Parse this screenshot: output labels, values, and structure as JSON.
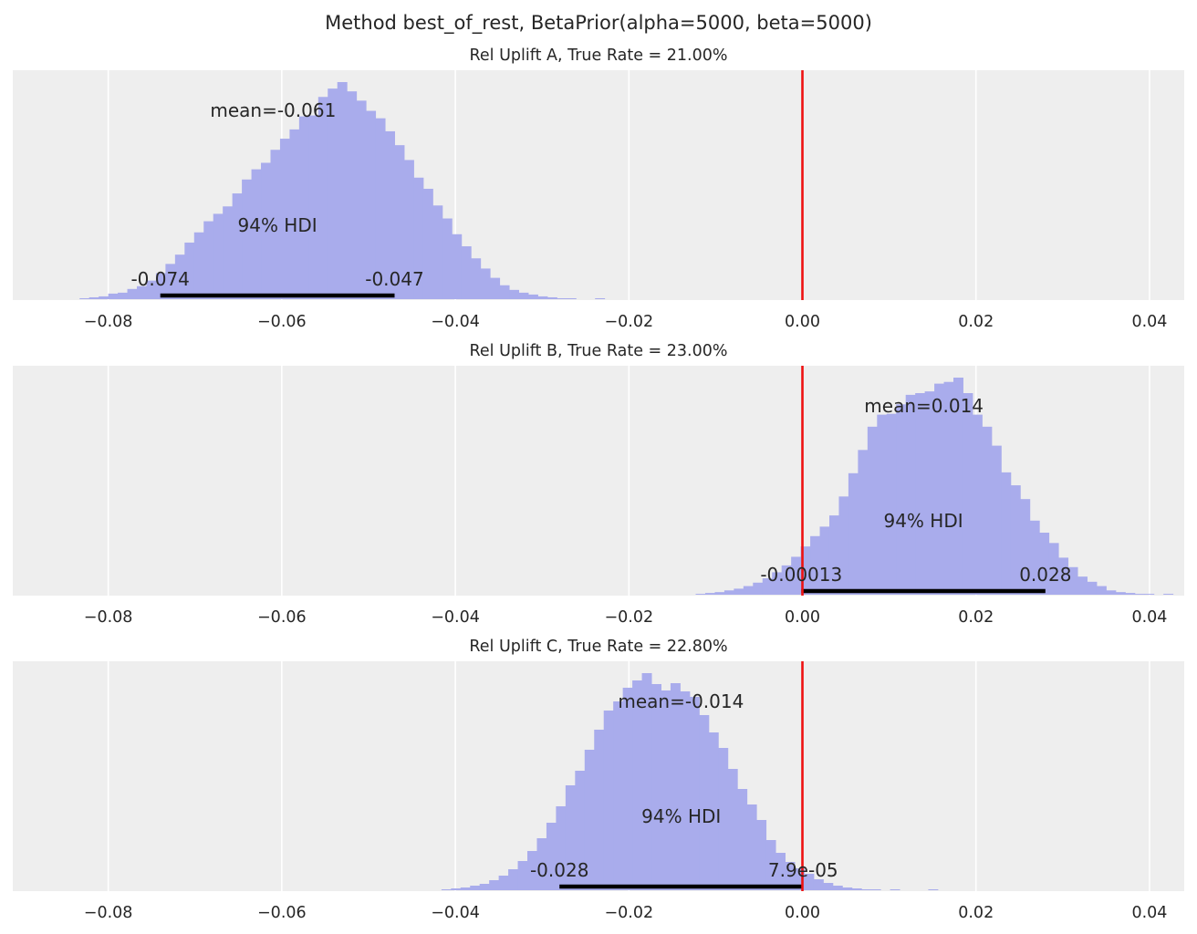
{
  "figure": {
    "suptitle": "Method best_of_rest, BetaPrior(alpha=5000, beta=5000)"
  },
  "colors": {
    "axes_bg": "#eeeeee",
    "grid": "#ffffff",
    "hist": "#a9acec",
    "ref_line": "#ee1111",
    "hdi_bar": "#000000",
    "text": "#262626"
  },
  "chart_data": [
    {
      "type": "histogram",
      "title": "Rel Uplift A, True Rate = 21.00%",
      "xlim": [
        -0.091,
        0.044
      ],
      "xticks": [
        -0.08,
        -0.06,
        -0.04,
        -0.02,
        0.0,
        0.02,
        0.04
      ],
      "xtick_labels": [
        "−0.08",
        "−0.06",
        "−0.04",
        "−0.02",
        "0.00",
        "0.02",
        "0.04"
      ],
      "grid": true,
      "ref_line_x": 0.0,
      "mean": -0.061,
      "mean_label": "mean=-0.061",
      "hdi_prob_label": "94% HDI",
      "hdi": [
        -0.074,
        -0.047
      ],
      "hdi_labels": [
        "-0.074",
        "-0.047"
      ],
      "bins": {
        "start": -0.0833,
        "width": 0.0011,
        "heights": [
          1,
          2,
          3,
          6,
          7,
          11,
          14,
          20,
          28,
          38,
          48,
          61,
          72,
          84,
          92,
          100,
          114,
          129,
          140,
          147,
          161,
          173,
          183,
          197,
          198,
          218,
          227,
          234,
          224,
          214,
          203,
          195,
          181,
          166,
          150,
          131,
          119,
          101,
          87,
          70,
          57,
          44,
          33,
          23,
          15,
          10,
          7,
          5,
          3,
          2,
          1,
          1,
          0,
          0,
          1
        ]
      }
    },
    {
      "type": "histogram",
      "title": "Rel Uplift B, True Rate = 23.00%",
      "xlim": [
        -0.091,
        0.044
      ],
      "xticks": [
        -0.08,
        -0.06,
        -0.04,
        -0.02,
        0.0,
        0.02,
        0.04
      ],
      "xtick_labels": [
        "−0.08",
        "−0.06",
        "−0.04",
        "−0.02",
        "0.00",
        "0.02",
        "0.04"
      ],
      "grid": true,
      "ref_line_x": 0.0,
      "mean": 0.014,
      "mean_label": "mean=0.014",
      "hdi_prob_label": "94% HDI",
      "hdi": [
        -0.00013,
        0.028
      ],
      "hdi_labels": [
        "-0.00013",
        "0.028"
      ],
      "bins": {
        "start": -0.0123,
        "width": 0.0011,
        "heights": [
          1,
          2,
          3,
          5,
          7,
          10,
          14,
          19,
          26,
          34,
          44,
          56,
          68,
          79,
          92,
          114,
          141,
          168,
          195,
          209,
          210,
          221,
          232,
          234,
          236,
          245,
          247,
          252,
          234,
          209,
          195,
          173,
          142,
          127,
          111,
          86,
          72,
          60,
          43,
          32,
          21,
          15,
          10,
          5,
          3,
          2,
          1,
          1,
          0,
          1
        ]
      }
    },
    {
      "type": "histogram",
      "title": "Rel Uplift C, True Rate = 22.80%",
      "xlim": [
        -0.091,
        0.044
      ],
      "xticks": [
        -0.08,
        -0.06,
        -0.04,
        -0.02,
        0.0,
        0.02,
        0.04
      ],
      "xtick_labels": [
        "−0.08",
        "−0.06",
        "−0.04",
        "−0.02",
        "0.00",
        "0.02",
        "0.04"
      ],
      "grid": true,
      "ref_line_x": 0.0,
      "mean": -0.014,
      "mean_label": "mean=-0.014",
      "hdi_prob_label": "94% HDI",
      "hdi": [
        -0.028,
        7.9e-05
      ],
      "hdi_labels": [
        "-0.028",
        "7.9e-05"
      ],
      "bins": {
        "start": -0.0416,
        "width": 0.0011,
        "heights": [
          1,
          2,
          3,
          5,
          7,
          11,
          16,
          23,
          32,
          43,
          57,
          74,
          92,
          115,
          131,
          154,
          176,
          197,
          207,
          222,
          230,
          238,
          226,
          219,
          227,
          218,
          212,
          192,
          173,
          156,
          133,
          111,
          94,
          77,
          55,
          41,
          31,
          24,
          18,
          12,
          8,
          5,
          3,
          2,
          1,
          1,
          0,
          1,
          0,
          0,
          0,
          1
        ]
      }
    }
  ]
}
